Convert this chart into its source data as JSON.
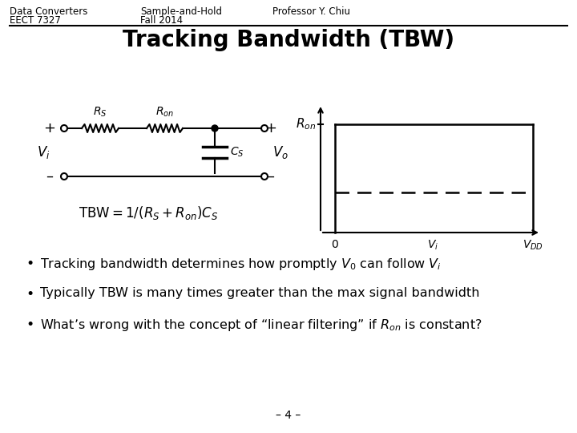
{
  "header_left1": "Data Converters",
  "header_left2": "EECT 7327",
  "header_center1": "Sample-and-Hold",
  "header_center2": "Fall 2014",
  "header_right1": "Professor Y. Chiu",
  "title": "Tracking Bandwidth (TBW)",
  "bullet2": "Typically TBW is many times greater than the max signal bandwidth",
  "footer": "– 4 –",
  "bg_color": "#ffffff",
  "text_color": "#000000",
  "header_fontsize": 8.5,
  "title_fontsize": 20,
  "bullet_fontsize": 11.5
}
